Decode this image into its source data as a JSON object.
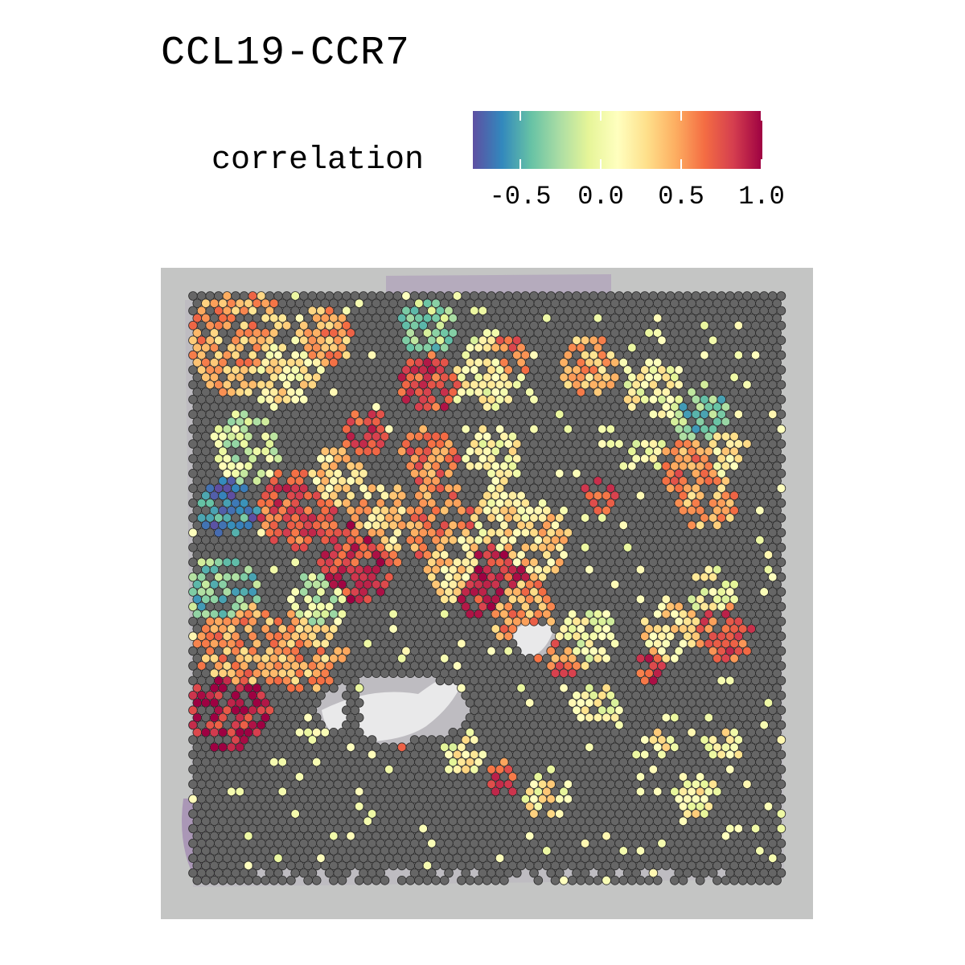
{
  "chart_data": {
    "type": "heatmap",
    "title": "CCL19-CCR7",
    "legend": {
      "title": "correlation",
      "position": "top",
      "colormap": [
        "#5e4fa2",
        "#3288bd",
        "#66c2a5",
        "#abdda4",
        "#e6f598",
        "#ffffbf",
        "#fee08b",
        "#fdae61",
        "#f46d43",
        "#d53e4f",
        "#9e0142"
      ],
      "range": [
        -0.8,
        1.0
      ],
      "ticks": [
        -0.5,
        0.0,
        0.5,
        1.0
      ],
      "tick_labels": [
        "-0.5",
        "0.0",
        "0.5",
        "1.0"
      ]
    },
    "na_color": "#666666",
    "background": "H&E tissue image (grey)",
    "hotspots": [
      {
        "x": 0.08,
        "y": 0.08,
        "r": 0.09,
        "v": 0.45
      },
      {
        "x": 0.15,
        "y": 0.12,
        "r": 0.07,
        "v": 0.2
      },
      {
        "x": 0.22,
        "y": 0.07,
        "r": 0.05,
        "v": 0.5
      },
      {
        "x": 0.09,
        "y": 0.26,
        "r": 0.06,
        "v": -0.1
      },
      {
        "x": 0.06,
        "y": 0.36,
        "r": 0.05,
        "v": -0.6
      },
      {
        "x": 0.18,
        "y": 0.36,
        "r": 0.07,
        "v": 0.7
      },
      {
        "x": 0.24,
        "y": 0.31,
        "r": 0.05,
        "v": 0.3
      },
      {
        "x": 0.28,
        "y": 0.45,
        "r": 0.07,
        "v": 0.8
      },
      {
        "x": 0.32,
        "y": 0.38,
        "r": 0.06,
        "v": 0.35
      },
      {
        "x": 0.41,
        "y": 0.38,
        "r": 0.07,
        "v": 0.55
      },
      {
        "x": 0.45,
        "y": 0.46,
        "r": 0.06,
        "v": 0.3
      },
      {
        "x": 0.5,
        "y": 0.48,
        "r": 0.07,
        "v": 0.85
      },
      {
        "x": 0.52,
        "y": 0.38,
        "r": 0.06,
        "v": 0.2
      },
      {
        "x": 0.58,
        "y": 0.42,
        "r": 0.06,
        "v": 0.3
      },
      {
        "x": 0.55,
        "y": 0.53,
        "r": 0.06,
        "v": 0.5
      },
      {
        "x": 0.05,
        "y": 0.5,
        "r": 0.06,
        "v": -0.35
      },
      {
        "x": 0.08,
        "y": 0.6,
        "r": 0.08,
        "v": 0.5
      },
      {
        "x": 0.06,
        "y": 0.7,
        "r": 0.07,
        "v": 0.9
      },
      {
        "x": 0.19,
        "y": 0.6,
        "r": 0.07,
        "v": 0.45
      },
      {
        "x": 0.21,
        "y": 0.52,
        "r": 0.05,
        "v": -0.1
      },
      {
        "x": 0.4,
        "y": 0.15,
        "r": 0.05,
        "v": 0.75
      },
      {
        "x": 0.4,
        "y": 0.05,
        "r": 0.05,
        "v": -0.3
      },
      {
        "x": 0.5,
        "y": 0.13,
        "r": 0.06,
        "v": 0.1
      },
      {
        "x": 0.53,
        "y": 0.11,
        "r": 0.04,
        "v": 0.6
      },
      {
        "x": 0.4,
        "y": 0.27,
        "r": 0.05,
        "v": 0.6
      },
      {
        "x": 0.51,
        "y": 0.27,
        "r": 0.05,
        "v": 0.1
      },
      {
        "x": 0.29,
        "y": 0.23,
        "r": 0.04,
        "v": 0.7
      },
      {
        "x": 0.67,
        "y": 0.12,
        "r": 0.05,
        "v": 0.4
      },
      {
        "x": 0.78,
        "y": 0.16,
        "r": 0.05,
        "v": 0.1
      },
      {
        "x": 0.86,
        "y": 0.2,
        "r": 0.05,
        "v": -0.35
      },
      {
        "x": 0.84,
        "y": 0.29,
        "r": 0.05,
        "v": 0.55
      },
      {
        "x": 0.9,
        "y": 0.26,
        "r": 0.04,
        "v": 0.2
      },
      {
        "x": 0.87,
        "y": 0.35,
        "r": 0.05,
        "v": 0.45
      },
      {
        "x": 0.69,
        "y": 0.34,
        "r": 0.03,
        "v": 0.7
      },
      {
        "x": 0.77,
        "y": 0.27,
        "r": 0.03,
        "v": 0.05
      },
      {
        "x": 0.81,
        "y": 0.57,
        "r": 0.05,
        "v": 0.25
      },
      {
        "x": 0.9,
        "y": 0.57,
        "r": 0.05,
        "v": 0.7
      },
      {
        "x": 0.88,
        "y": 0.5,
        "r": 0.04,
        "v": 0.05
      },
      {
        "x": 0.67,
        "y": 0.58,
        "r": 0.05,
        "v": 0.05
      },
      {
        "x": 0.62,
        "y": 0.62,
        "r": 0.04,
        "v": 0.6
      },
      {
        "x": 0.77,
        "y": 0.63,
        "r": 0.03,
        "v": 0.8
      },
      {
        "x": 0.35,
        "y": 0.74,
        "r": 0.03,
        "v": 0.7
      },
      {
        "x": 0.52,
        "y": 0.82,
        "r": 0.03,
        "v": 0.7
      },
      {
        "x": 0.46,
        "y": 0.77,
        "r": 0.04,
        "v": 0.1
      },
      {
        "x": 0.68,
        "y": 0.7,
        "r": 0.04,
        "v": 0.1
      },
      {
        "x": 0.35,
        "y": 0.7,
        "r": 0.04,
        "v": 0.15
      },
      {
        "x": 0.6,
        "y": 0.85,
        "r": 0.04,
        "v": 0.15
      },
      {
        "x": 0.85,
        "y": 0.85,
        "r": 0.04,
        "v": 0.15
      },
      {
        "x": 0.9,
        "y": 0.76,
        "r": 0.03,
        "v": 0.15
      },
      {
        "x": 0.78,
        "y": 0.76,
        "r": 0.03,
        "v": 0.15
      }
    ]
  }
}
